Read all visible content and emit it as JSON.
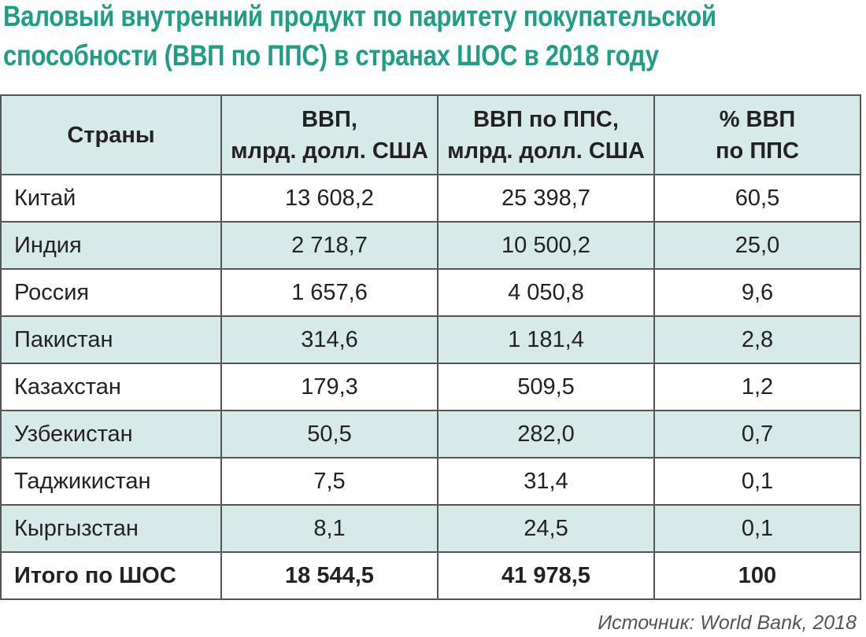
{
  "title_lines": [
    "Валовый внутренний продукт по паритету покупательской",
    "способности (ВВП по ППС) в странах ШОС в 2018 году"
  ],
  "table": {
    "header": [
      "Страны",
      "ВВП,\nмлрд. долл. США",
      "ВВП по ППС,\nмлрд. долл. США",
      "% ВВП\nпо ППС"
    ],
    "rows": [
      [
        "Китай",
        "13 608,2",
        "25 398,7",
        "60,5"
      ],
      [
        "Индия",
        "2 718,7",
        "10 500,2",
        "25,0"
      ],
      [
        "Россия",
        "1 657,6",
        "4 050,8",
        "9,6"
      ],
      [
        "Пакистан",
        "314,6",
        "1 181,4",
        "2,8"
      ],
      [
        "Казахстан",
        "179,3",
        "509,5",
        "1,2"
      ],
      [
        "Узбекистан",
        "50,5",
        "282,0",
        "0,7"
      ],
      [
        "Таджикистан",
        "7,5",
        "31,4",
        "0,1"
      ],
      [
        "Кыргызстан",
        "8,1",
        "24,5",
        "0,1"
      ]
    ],
    "total": [
      "Итого по ШОС",
      "18 544,5",
      "41 978,5",
      "100"
    ]
  },
  "source": "Источник: World Bank, 2018"
}
